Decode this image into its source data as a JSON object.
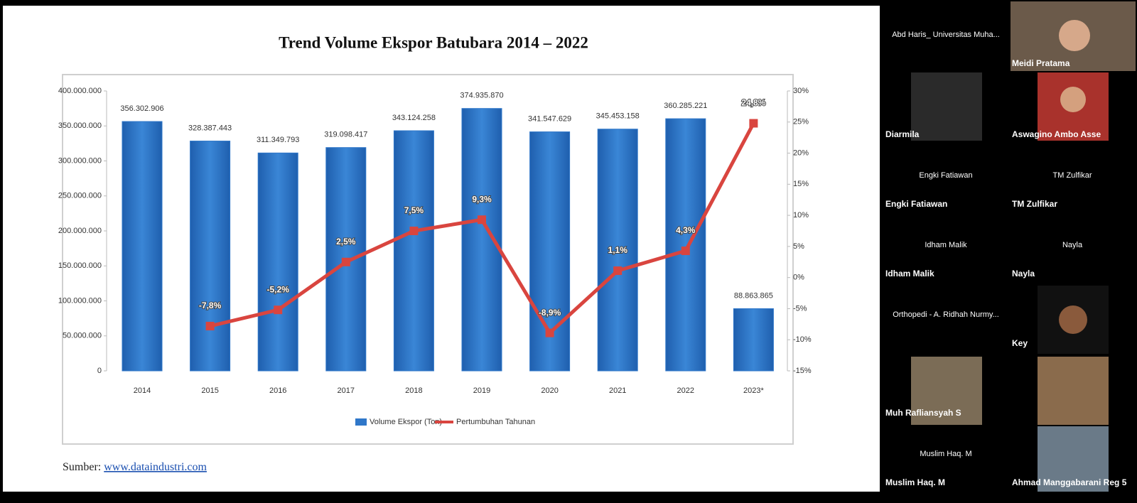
{
  "chart_data": {
    "type": "bar-line",
    "title": "Trend Volume Ekspor Batubara 2014 – 2022",
    "categories": [
      "2014",
      "2015",
      "2016",
      "2017",
      "2018",
      "2019",
      "2020",
      "2021",
      "2022",
      "2023*"
    ],
    "series": [
      {
        "name": "Volume Ekspor (Ton)",
        "type": "bar",
        "color": "#2f77c9",
        "values": [
          356302906,
          328387443,
          311349793,
          319098417,
          343124258,
          374935870,
          341547629,
          345453158,
          360285221,
          88863865
        ],
        "value_labels": [
          "356.302.906",
          "328.387.443",
          "311.349.793",
          "319.098.417",
          "343.124.258",
          "374.935.870",
          "341.547.629",
          "345.453.158",
          "360.285.221",
          "88.863.865"
        ]
      },
      {
        "name": "Pertumbuhan Tahunan",
        "type": "line",
        "axis": "y2",
        "color": "#d9453f",
        "values": [
          null,
          -7.8,
          -5.2,
          2.5,
          7.5,
          9.3,
          -8.9,
          1.1,
          4.3,
          24.8
        ],
        "value_labels": [
          null,
          "-7,8%",
          "-5,2%",
          "2,5%",
          "7,5%",
          "9,3%",
          "-8,9%",
          "1,1%",
          "4,3%",
          "24,8%"
        ]
      }
    ],
    "ylim": [
      0,
      400000000
    ],
    "yticks": [
      0,
      {
        "value": 50000000,
        "label": "50.000.000"
      },
      {
        "value": 100000000,
        "label": "100.000.000"
      },
      {
        "value": 150000000,
        "label": "150.000.000"
      },
      {
        "value": 200000000,
        "label": "200.000.000"
      },
      {
        "value": 250000000,
        "label": "250.000.000"
      },
      {
        "value": 300000000,
        "label": "300.000.000"
      },
      {
        "value": 350000000,
        "label": "350.000.000"
      },
      {
        "value": 400000000,
        "label": "400.000.000"
      }
    ],
    "y2lim": [
      -15,
      30
    ],
    "y2ticks": [
      {
        "value": -15,
        "label": "-15%"
      },
      {
        "value": -10,
        "label": "-10%"
      },
      {
        "value": -5,
        "label": "-5%"
      },
      {
        "value": 0,
        "label": "0%"
      },
      {
        "value": 5,
        "label": "5%"
      },
      {
        "value": 10,
        "label": "10%"
      },
      {
        "value": 15,
        "label": "15%"
      },
      {
        "value": 20,
        "label": "20%"
      },
      {
        "value": 25,
        "label": "25%"
      },
      {
        "value": 30,
        "label": "30%"
      }
    ],
    "legend": "bottom"
  },
  "source": {
    "label": "Sumber:",
    "link": "www.dataindustri.com"
  },
  "participants": [
    {
      "display": "Abd Haris_ Universitas Muha..."
    },
    {
      "label": "Meidi Pratama"
    },
    {
      "label": "Diarmila"
    },
    {
      "label": "Aswagino Ambo Asse"
    },
    {
      "display": "Engki Fatiawan",
      "label": "Engki Fatiawan"
    },
    {
      "display": "TM Zulfikar",
      "label": "TM Zulfikar"
    },
    {
      "display": "Idham Malik",
      "label": "Idham Malik"
    },
    {
      "display": "Nayla",
      "label": "Nayla"
    },
    {
      "display": "Orthopedi - A. Ridhah Nurmy..."
    },
    {
      "label": "Key"
    },
    {
      "label": "Muh Rafliansyah S"
    },
    {
      "display": "Muslim Haq. M",
      "label": "Muslim Haq. M"
    },
    {
      "label": "Ahmad Manggabarani Reg 5"
    }
  ]
}
